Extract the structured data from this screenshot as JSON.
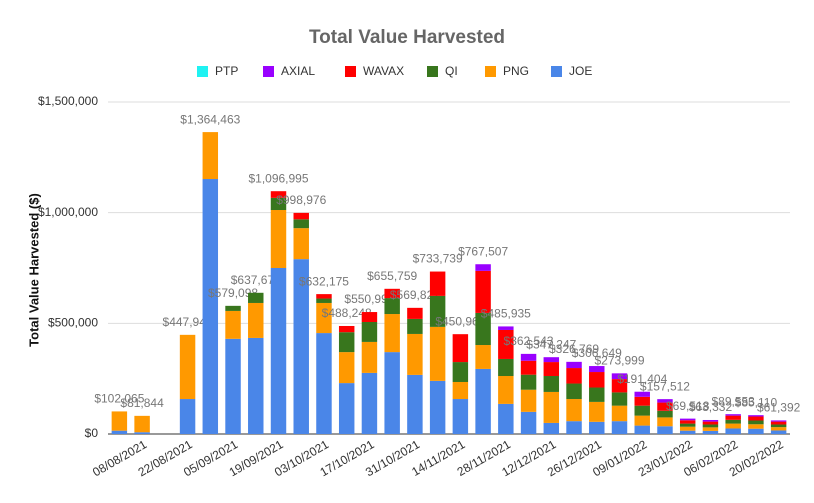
{
  "chart_data": {
    "type": "stacked_bar",
    "title": "Total Value Harvested",
    "y_label": "Total Value Harvested ($)",
    "categories": [
      null,
      "08/08/2021",
      null,
      "22/08/2021",
      null,
      "05/09/2021",
      null,
      "19/09/2021",
      null,
      "03/10/2021",
      null,
      "17/10/2021",
      null,
      "31/10/2021",
      null,
      "14/11/2021",
      null,
      "28/11/2021",
      null,
      "12/12/2021",
      null,
      "26/12/2021",
      null,
      "09/01/2022",
      null,
      "23/01/2022",
      null,
      "06/02/2022",
      null,
      "20/02/2022"
    ],
    "series": [
      {
        "name": "PTP",
        "color": "#1ff2f2",
        "values": [
          0,
          0,
          0,
          0,
          0,
          0,
          0,
          0,
          0,
          0,
          0,
          0,
          0,
          0,
          0,
          0,
          0,
          0,
          0,
          0,
          0,
          0,
          0,
          0,
          0,
          0,
          0,
          0,
          0,
          0
        ]
      },
      {
        "name": "AXIAL",
        "color": "#9900ff",
        "values": [
          0,
          0,
          0,
          0,
          0,
          0,
          0,
          0,
          0,
          0,
          0,
          0,
          0,
          0,
          0,
          0,
          30000,
          16000,
          31000,
          22000,
          28000,
          27000,
          26000,
          23000,
          15500,
          7500,
          7300,
          6500,
          6100,
          5400
        ]
      },
      {
        "name": "WAVAX",
        "color": "#ff0000",
        "values": [
          0,
          0,
          0,
          0,
          0,
          0,
          0,
          30000,
          29000,
          20000,
          28000,
          45000,
          42000,
          50000,
          110000,
          126000,
          190000,
          131000,
          63000,
          63000,
          70000,
          70000,
          60000,
          40000,
          37000,
          15000,
          13000,
          19000,
          18000,
          13000
        ]
      },
      {
        "name": "QI",
        "color": "#38761d",
        "values": [
          0,
          0,
          0,
          0,
          0,
          23000,
          46000,
          55000,
          40000,
          20000,
          90000,
          90000,
          72000,
          68000,
          140000,
          90000,
          145000,
          77000,
          68000,
          72000,
          70000,
          65000,
          60000,
          45000,
          30000,
          14000,
          13000,
          17000,
          17000,
          12000
        ]
      },
      {
        "name": "PNG",
        "color": "#ff9900",
        "values": [
          87000,
          74000,
          0,
          290000,
          212000,
          126000,
          158000,
          262000,
          140000,
          136000,
          140000,
          140000,
          172000,
          185000,
          244000,
          77000,
          108000,
          126000,
          100000,
          140000,
          100000,
          90000,
          70000,
          45000,
          40000,
          18000,
          16000,
          22000,
          20000,
          15000
        ]
      },
      {
        "name": "JOE",
        "color": "#4a86e8",
        "values": [
          15000,
          8000,
          0,
          158000,
          1152000,
          430000,
          434000,
          750000,
          790000,
          456000,
          230000,
          276000,
          370000,
          267000,
          240000,
          158000,
          294000,
          136000,
          100000,
          50000,
          58000,
          55000,
          58000,
          38000,
          35000,
          15000,
          14000,
          25000,
          24000,
          16000
        ]
      }
    ],
    "total_labels": [
      "$102,065",
      "$81,844",
      null,
      "$447,948",
      "$1,364,463",
      "$579,098",
      "$637,679",
      "$1,096,995",
      "$998,976",
      "$632,175",
      "$488,248",
      "$550,997",
      "$655,759",
      "$569,822",
      "$733,739",
      "$450,961",
      "$767,507",
      "$485,935",
      "$362,543",
      "$347,247",
      "$326,769",
      "$306,649",
      "$273,999",
      "$191,404",
      "$157,512",
      "$69,518",
      "$63,332",
      "$89,553",
      "$85,110",
      "$61,392"
    ],
    "ylim": [
      0,
      1500000
    ],
    "yticks": [
      {
        "value": 0,
        "label": "$0"
      },
      {
        "value": 500000,
        "label": "$500,000"
      },
      {
        "value": 1000000,
        "label": "$1,000,000"
      },
      {
        "value": 1500000,
        "label": "$1,500,000"
      }
    ],
    "grid": true,
    "legend": "top"
  }
}
